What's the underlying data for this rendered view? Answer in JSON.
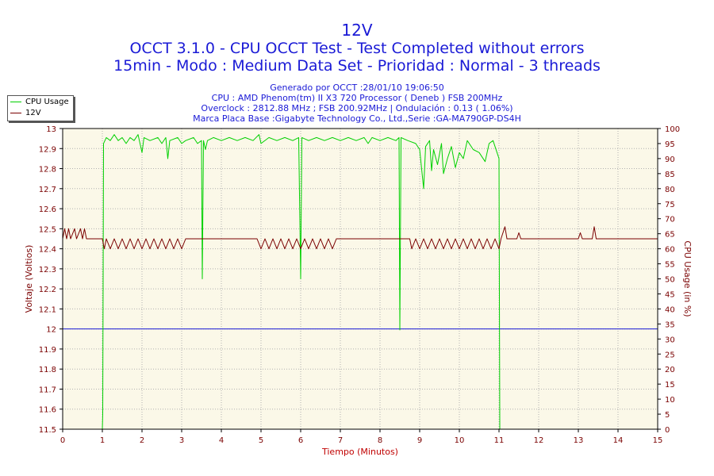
{
  "titles": {
    "line1": "12V",
    "line2": "OCCT 3.1.0 - CPU OCCT Test - Test Completed without errors",
    "line3": "15min - Modo : Medium Data Set - Prioridad : Normal - 3 threads"
  },
  "info": {
    "generated": "Generado por OCCT :28/01/10 19:06:50",
    "cpu": "CPU : AMD Phenom(tm) II X3 720 Processor ( Deneb ) FSB 200MHz",
    "overclock": "Overclock : 2812.88 MHz ; FSB 200.92MHz | Ondulación : 0.13 ( 1.06%)",
    "board": "Marca Placa Base :Gigabyte Technology Co., Ltd.,Serie :GA-MA790GP-DS4H"
  },
  "legend": [
    {
      "label": "CPU Usage",
      "color": "#00d000"
    },
    {
      "label": "12V",
      "color": "#7a0000"
    }
  ],
  "chart_data": {
    "type": "line",
    "xlabel": "Tiempo (Minutos)",
    "ylabel_left": "Voltaje (Voltios)",
    "ylabel_right": "CPU Usage (in %)",
    "xlim": [
      0,
      15
    ],
    "ylim_left": [
      11.5,
      13
    ],
    "ylim_right": [
      0,
      100
    ],
    "x_ticks": [
      "0",
      "1",
      "2",
      "3",
      "4",
      "5",
      "6",
      "7",
      "8",
      "9",
      "10",
      "11",
      "12",
      "13",
      "14",
      "15"
    ],
    "y_left_ticks": [
      "11.5",
      "11.6",
      "11.7",
      "11.8",
      "11.9",
      "12",
      "12.1",
      "12.2",
      "12.3",
      "12.4",
      "12.5",
      "12.6",
      "12.7",
      "12.8",
      "12.9",
      "13"
    ],
    "y_right_ticks": [
      "0",
      "5",
      "10",
      "15",
      "20",
      "25",
      "30",
      "35",
      "40",
      "45",
      "50",
      "55",
      "60",
      "65",
      "70",
      "75",
      "80",
      "85",
      "90",
      "95",
      "100"
    ],
    "reference_line": {
      "axis": "left",
      "value": 12.0,
      "color": "#1a1ad6"
    },
    "colors": {
      "plot_bg": "#fbf8e8",
      "grid": "#b0b0b0",
      "axis_text_left": "#7a0000",
      "axis_text_right": "#7a0000",
      "xlabel_color": "#c00000"
    },
    "series": [
      {
        "name": "CPU Usage",
        "axis": "right",
        "color": "#00d000",
        "points": [
          [
            0.0,
            0
          ],
          [
            1.0,
            0
          ],
          [
            1.01,
            5
          ],
          [
            1.03,
            95
          ],
          [
            1.1,
            97
          ],
          [
            1.2,
            96
          ],
          [
            1.3,
            98
          ],
          [
            1.4,
            96
          ],
          [
            1.5,
            97
          ],
          [
            1.6,
            95
          ],
          [
            1.7,
            97
          ],
          [
            1.8,
            96
          ],
          [
            1.9,
            98
          ],
          [
            2.0,
            92
          ],
          [
            2.05,
            97
          ],
          [
            2.2,
            96
          ],
          [
            2.4,
            97
          ],
          [
            2.5,
            95
          ],
          [
            2.6,
            97
          ],
          [
            2.65,
            90
          ],
          [
            2.7,
            96
          ],
          [
            2.9,
            97
          ],
          [
            3.0,
            95
          ],
          [
            3.1,
            96
          ],
          [
            3.3,
            97
          ],
          [
            3.4,
            95
          ],
          [
            3.5,
            96
          ],
          [
            3.52,
            50
          ],
          [
            3.55,
            96
          ],
          [
            3.6,
            93
          ],
          [
            3.65,
            96
          ],
          [
            3.8,
            97
          ],
          [
            4.0,
            96
          ],
          [
            4.2,
            97
          ],
          [
            4.4,
            96
          ],
          [
            4.6,
            97
          ],
          [
            4.8,
            96
          ],
          [
            4.95,
            98
          ],
          [
            5.0,
            95
          ],
          [
            5.2,
            97
          ],
          [
            5.4,
            96
          ],
          [
            5.6,
            97
          ],
          [
            5.8,
            96
          ],
          [
            5.95,
            97
          ],
          [
            6.0,
            50
          ],
          [
            6.03,
            97
          ],
          [
            6.2,
            96
          ],
          [
            6.4,
            97
          ],
          [
            6.6,
            96
          ],
          [
            6.8,
            97
          ],
          [
            7.0,
            96
          ],
          [
            7.2,
            97
          ],
          [
            7.4,
            96
          ],
          [
            7.6,
            97
          ],
          [
            7.7,
            95
          ],
          [
            7.8,
            97
          ],
          [
            8.0,
            96
          ],
          [
            8.2,
            97
          ],
          [
            8.4,
            96
          ],
          [
            8.48,
            97
          ],
          [
            8.5,
            33
          ],
          [
            8.53,
            97
          ],
          [
            8.7,
            96
          ],
          [
            8.9,
            95
          ],
          [
            9.0,
            93
          ],
          [
            9.1,
            80
          ],
          [
            9.15,
            94
          ],
          [
            9.25,
            96
          ],
          [
            9.3,
            86
          ],
          [
            9.35,
            93
          ],
          [
            9.45,
            88
          ],
          [
            9.55,
            95
          ],
          [
            9.6,
            85
          ],
          [
            9.7,
            90
          ],
          [
            9.8,
            94
          ],
          [
            9.9,
            87
          ],
          [
            10.0,
            92
          ],
          [
            10.1,
            90
          ],
          [
            10.2,
            96
          ],
          [
            10.35,
            93
          ],
          [
            10.5,
            92
          ],
          [
            10.65,
            89
          ],
          [
            10.75,
            95
          ],
          [
            10.85,
            96
          ],
          [
            10.95,
            92
          ],
          [
            11.0,
            90
          ],
          [
            11.02,
            0
          ],
          [
            15.0,
            0
          ]
        ]
      },
      {
        "name": "12V",
        "axis": "left",
        "color": "#7a0000",
        "points": [
          [
            0.0,
            12.45
          ],
          [
            0.05,
            12.5
          ],
          [
            0.1,
            12.45
          ],
          [
            0.15,
            12.5
          ],
          [
            0.2,
            12.45
          ],
          [
            0.3,
            12.5
          ],
          [
            0.35,
            12.45
          ],
          [
            0.45,
            12.5
          ],
          [
            0.5,
            12.45
          ],
          [
            0.55,
            12.5
          ],
          [
            0.6,
            12.45
          ],
          [
            1.0,
            12.45
          ],
          [
            1.05,
            12.4
          ],
          [
            1.1,
            12.45
          ],
          [
            1.2,
            12.4
          ],
          [
            1.3,
            12.45
          ],
          [
            1.4,
            12.4
          ],
          [
            1.5,
            12.45
          ],
          [
            1.6,
            12.4
          ],
          [
            1.7,
            12.45
          ],
          [
            1.8,
            12.4
          ],
          [
            1.9,
            12.45
          ],
          [
            2.0,
            12.4
          ],
          [
            2.1,
            12.45
          ],
          [
            2.2,
            12.4
          ],
          [
            2.3,
            12.45
          ],
          [
            2.4,
            12.4
          ],
          [
            2.5,
            12.45
          ],
          [
            2.6,
            12.4
          ],
          [
            2.7,
            12.45
          ],
          [
            2.8,
            12.4
          ],
          [
            2.9,
            12.45
          ],
          [
            3.0,
            12.4
          ],
          [
            3.1,
            12.45
          ],
          [
            4.9,
            12.45
          ],
          [
            5.0,
            12.4
          ],
          [
            5.1,
            12.45
          ],
          [
            5.2,
            12.4
          ],
          [
            5.3,
            12.45
          ],
          [
            5.4,
            12.4
          ],
          [
            5.5,
            12.45
          ],
          [
            5.6,
            12.4
          ],
          [
            5.7,
            12.45
          ],
          [
            5.8,
            12.4
          ],
          [
            5.9,
            12.45
          ],
          [
            6.0,
            12.4
          ],
          [
            6.1,
            12.45
          ],
          [
            6.2,
            12.4
          ],
          [
            6.3,
            12.45
          ],
          [
            6.4,
            12.4
          ],
          [
            6.5,
            12.45
          ],
          [
            6.6,
            12.4
          ],
          [
            6.7,
            12.45
          ],
          [
            6.8,
            12.4
          ],
          [
            6.9,
            12.45
          ],
          [
            8.75,
            12.45
          ],
          [
            8.8,
            12.4
          ],
          [
            8.9,
            12.45
          ],
          [
            9.0,
            12.4
          ],
          [
            9.1,
            12.45
          ],
          [
            9.2,
            12.4
          ],
          [
            9.3,
            12.45
          ],
          [
            9.4,
            12.4
          ],
          [
            9.5,
            12.45
          ],
          [
            9.6,
            12.4
          ],
          [
            9.7,
            12.45
          ],
          [
            9.8,
            12.4
          ],
          [
            9.9,
            12.45
          ],
          [
            10.0,
            12.4
          ],
          [
            10.1,
            12.45
          ],
          [
            10.2,
            12.4
          ],
          [
            10.3,
            12.45
          ],
          [
            10.4,
            12.4
          ],
          [
            10.5,
            12.45
          ],
          [
            10.6,
            12.4
          ],
          [
            10.7,
            12.45
          ],
          [
            10.8,
            12.4
          ],
          [
            10.9,
            12.45
          ],
          [
            11.0,
            12.4
          ],
          [
            11.05,
            12.45
          ],
          [
            11.15,
            12.51
          ],
          [
            11.2,
            12.45
          ],
          [
            11.45,
            12.45
          ],
          [
            11.5,
            12.48
          ],
          [
            11.55,
            12.45
          ],
          [
            13.0,
            12.45
          ],
          [
            13.05,
            12.48
          ],
          [
            13.1,
            12.45
          ],
          [
            13.35,
            12.45
          ],
          [
            13.4,
            12.51
          ],
          [
            13.45,
            12.45
          ],
          [
            15.0,
            12.45
          ]
        ]
      }
    ]
  }
}
